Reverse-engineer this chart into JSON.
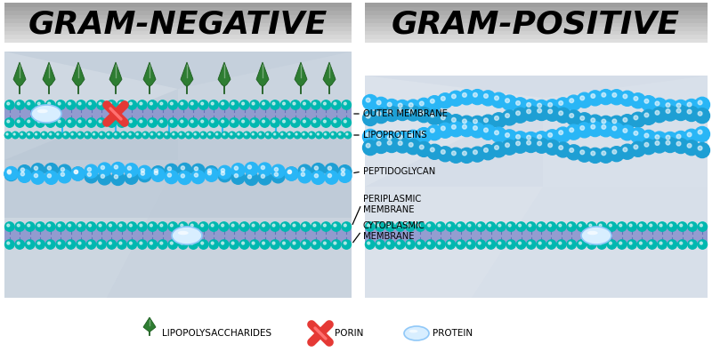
{
  "title_left": "GRAM-NEGATIVE",
  "title_right": "GRAM-POSITIVE",
  "title_fontsize": 26,
  "background_color": "#ffffff",
  "labels": {
    "outer_membrane": "OUTER MEMBRANE",
    "lipoproteins": "LIPOPROTEINS",
    "peptidoglycan": "PEPTIDOGLYCAN",
    "periplasmic": "PERIPLASMIC\nMEMBRANE",
    "cytoplasmic": "CYTOPLASMIC\nMEMBRANE"
  },
  "legend_items": [
    "LIPOPOLYSACCHARIDES",
    "PORIN",
    "PROTEIN"
  ],
  "legend_fontsize": 7.5,
  "colors": {
    "teal": "#00b8b0",
    "teal_dark": "#009990",
    "blue_bead": "#29b6f6",
    "blue_bead2": "#1e9fd4",
    "purple_bilayer": "#8891cc",
    "red_porin": "#e53935",
    "red_porin_light": "#ff7070",
    "green_lps_dark": "#1e5e20",
    "green_lps_mid": "#2e7d32",
    "green_lps_light": "#4a9c4e",
    "protein_fill": "#d8eeff",
    "protein_edge": "#90c8f8",
    "gray_panel": "#c5d0dc",
    "gray_panel2": "#d5dde8",
    "white_facet": "#e8eef5"
  }
}
